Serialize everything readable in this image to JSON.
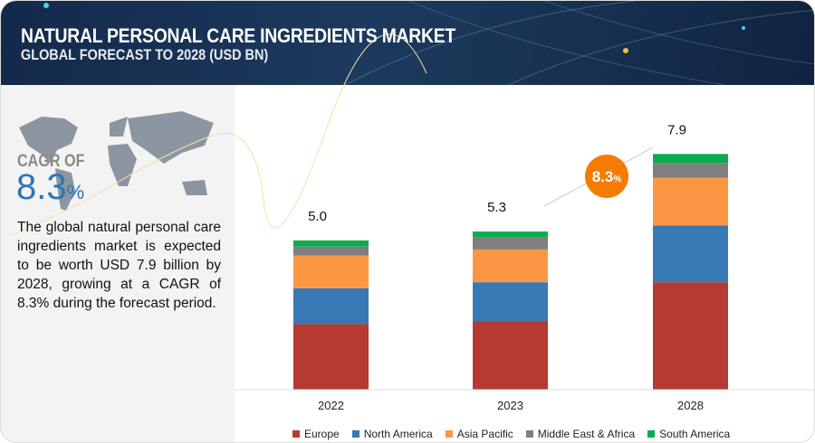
{
  "header": {
    "title": "NATURAL PERSONAL CARE INGREDIENTS MARKET",
    "subtitle": "GLOBAL FORECAST TO 2028 (USD BN)"
  },
  "sidebar": {
    "cagr_label": "CAGR OF",
    "cagr_value": "8.3",
    "cagr_unit": "%",
    "description": "The global natural personal care ingredients market is expected to be worth USD 7.9 billion by 2028, growing at a CAGR of 8.3% during the forecast period."
  },
  "chart_data": {
    "type": "bar",
    "stacked": true,
    "title": "NATURAL PERSONAL CARE INGREDIENTS MARKET",
    "subtitle": "GLOBAL FORECAST TO 2028 (USD BN)",
    "categories": [
      "2022",
      "2023",
      "2028"
    ],
    "totals": [
      "5.0",
      "5.3",
      "7.9"
    ],
    "series": [
      {
        "name": "Europe",
        "color": "#b63a32",
        "values": [
          2.2,
          2.3,
          3.6
        ]
      },
      {
        "name": "North America",
        "color": "#3878b5",
        "values": [
          1.2,
          1.3,
          1.9
        ]
      },
      {
        "name": "Asia Pacific",
        "color": "#fb9743",
        "values": [
          1.1,
          1.1,
          1.6
        ]
      },
      {
        "name": "Middle East & Africa",
        "color": "#7f7f7f",
        "values": [
          0.3,
          0.4,
          0.5
        ]
      },
      {
        "name": "South America",
        "color": "#0aad4e",
        "values": [
          0.2,
          0.2,
          0.3
        ]
      }
    ],
    "annotation": {
      "text": "8.3",
      "unit": "%",
      "color": "#f57c00"
    },
    "legend": "bottom",
    "grid": false
  }
}
